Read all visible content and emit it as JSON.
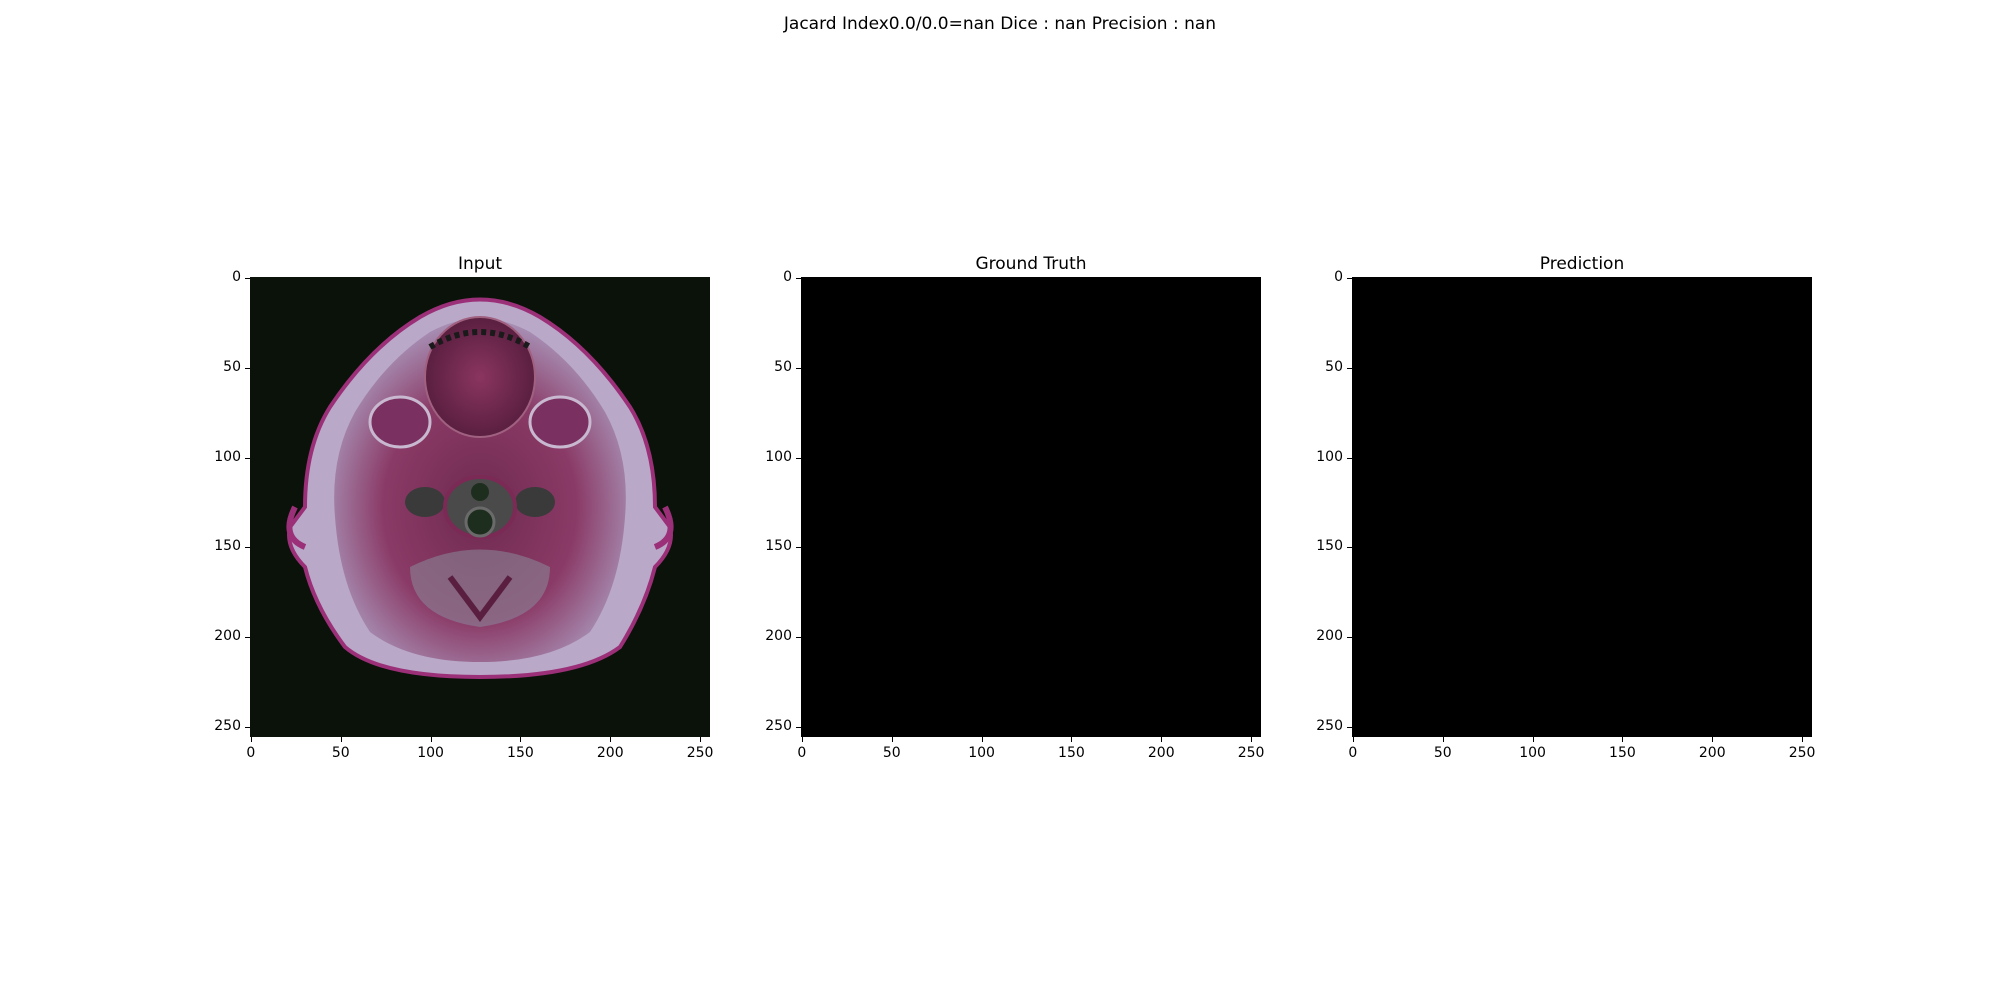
{
  "figure": {
    "suptitle": "Jacard Index0.0/0.0=nan Dice : nan Precision : nan",
    "panels": [
      {
        "title": "Input",
        "content": "axial MRI slice of head/neck"
      },
      {
        "title": "Ground Truth",
        "content": "empty (all black)"
      },
      {
        "title": "Prediction",
        "content": "empty (all black)"
      }
    ],
    "y_ticks": [
      "0",
      "50",
      "100",
      "150",
      "200",
      "250"
    ],
    "x_ticks": [
      "0",
      "50",
      "100",
      "150",
      "200",
      "250"
    ],
    "image_extent": [
      0,
      256
    ]
  },
  "colors": {
    "background": "#000000",
    "skin": "#b8a6c4",
    "tissue": "#7a2a55"
  }
}
